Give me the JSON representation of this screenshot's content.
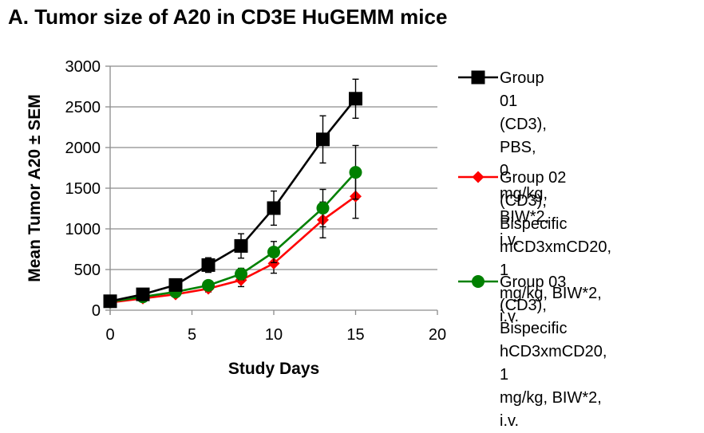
{
  "chart_data": {
    "type": "line",
    "title": "A.  Tumor size of A20 in CD3E HuGEMM mice",
    "xlabel": "Study Days",
    "ylabel": "Mean Tumor A20 ± SEM",
    "xlim": [
      0,
      20
    ],
    "ylim": [
      0,
      3000
    ],
    "xticks": [
      0,
      5,
      10,
      15,
      20
    ],
    "yticks": [
      0,
      500,
      1000,
      1500,
      2000,
      2500,
      3000
    ],
    "grid": "horizontal",
    "legend_position": "right",
    "series": [
      {
        "name": "Group 01 (CD3), PBS, 0 mg/kg, BIW*2, i.v.",
        "legend_lines": [
          "Group 01 (CD3), PBS,",
          "0 mg/kg, BIW*2, i.v."
        ],
        "color": "#000000",
        "marker": "square",
        "x": [
          0,
          2,
          4,
          6,
          8,
          10,
          13,
          15
        ],
        "y": [
          110,
          195,
          310,
          555,
          790,
          1255,
          2100,
          2600
        ],
        "err": [
          20,
          25,
          40,
          90,
          150,
          210,
          290,
          240
        ]
      },
      {
        "name": "Group 02 (CD3), Bispecific mCD3xmCD20, 1 mg/kg, BIW*2, i.v.",
        "legend_lines": [
          "Group 02 (CD3),",
          "Bispecific",
          "mCD3xmCD20, 1",
          "mg/kg, BIW*2, i.v."
        ],
        "color": "#ff0000",
        "marker": "diamond",
        "x": [
          0,
          2,
          4,
          6,
          8,
          10,
          13,
          15
        ],
        "y": [
          95,
          145,
          195,
          265,
          370,
          575,
          1110,
          1400
        ],
        "err": [
          15,
          20,
          25,
          40,
          80,
          120,
          220,
          270
        ]
      },
      {
        "name": "Group 03 (CD3), Bispecific hCD3xmCD20, 1 mg/kg, BIW*2, i.v.",
        "legend_lines": [
          "Group 03 (CD3),",
          "Bispecific",
          "hCD3xmCD20, 1",
          "mg/kg, BIW*2, i.v."
        ],
        "color": "#008000",
        "marker": "circle",
        "x": [
          0,
          2,
          4,
          6,
          8,
          10,
          13,
          15
        ],
        "y": [
          105,
          165,
          225,
          305,
          445,
          715,
          1255,
          1695
        ],
        "err": [
          15,
          20,
          25,
          40,
          70,
          130,
          230,
          330
        ]
      }
    ]
  }
}
